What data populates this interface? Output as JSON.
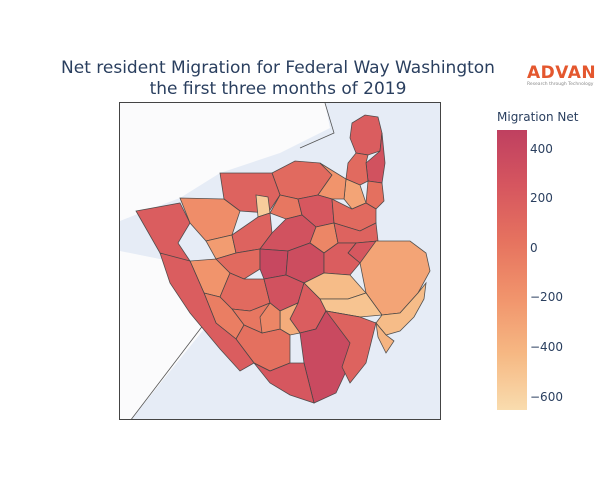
{
  "title": {
    "line1": "Net resident Migration for Federal Way Washington",
    "line2": "the first three months of 2019"
  },
  "logo": {
    "word": "ADVAN",
    "tagline": "Research through Technology"
  },
  "colorbar": {
    "title": "Migration Net",
    "min": -650,
    "max": 480,
    "ticks": [
      "400",
      "200",
      "0",
      "−200",
      "−400",
      "−600"
    ],
    "tick_values": [
      400,
      200,
      0,
      -200,
      -400,
      -600
    ],
    "colors": [
      "#f9dcae",
      "#f6b883",
      "#f1946c",
      "#e6735f",
      "#d6565f",
      "#bf4060"
    ]
  },
  "map": {
    "background_water": "#e6ecf6",
    "background_land": "#fbfbfc",
    "outline_color": "#444444",
    "regions": [
      {
        "id": "r01",
        "value": 200
      },
      {
        "id": "r02",
        "value": 300
      },
      {
        "id": "r03",
        "value": 100
      },
      {
        "id": "r04",
        "value": 50
      },
      {
        "id": "r05",
        "value": -300
      },
      {
        "id": "r06",
        "value": 100
      },
      {
        "id": "r07",
        "value": -200
      },
      {
        "id": "r08",
        "value": 150
      },
      {
        "id": "r09",
        "value": -550
      },
      {
        "id": "r10",
        "value": 0
      },
      {
        "id": "r11",
        "value": 250
      },
      {
        "id": "r12",
        "value": 100
      },
      {
        "id": "r13",
        "value": 200
      },
      {
        "id": "r14",
        "value": -150
      },
      {
        "id": "r15",
        "value": -250
      },
      {
        "id": "r16",
        "value": 150
      },
      {
        "id": "r17",
        "value": 300
      },
      {
        "id": "r18",
        "value": -100
      },
      {
        "id": "r19",
        "value": 150
      },
      {
        "id": "r20",
        "value": 250
      },
      {
        "id": "r21",
        "value": -300
      },
      {
        "id": "r22",
        "value": -200
      },
      {
        "id": "r23",
        "value": 100
      },
      {
        "id": "r24",
        "value": 400
      },
      {
        "id": "r25",
        "value": 350
      },
      {
        "id": "r26",
        "value": 200
      },
      {
        "id": "r27",
        "value": -450
      },
      {
        "id": "r28",
        "value": -500
      },
      {
        "id": "r29",
        "value": -450
      },
      {
        "id": "r30",
        "value": 100
      },
      {
        "id": "r31",
        "value": 300
      },
      {
        "id": "r32",
        "value": 200
      },
      {
        "id": "r33",
        "value": -350
      },
      {
        "id": "r34",
        "value": 0
      },
      {
        "id": "r35",
        "value": -50
      },
      {
        "id": "r36",
        "value": 380
      },
      {
        "id": "r37",
        "value": 50
      },
      {
        "id": "r38",
        "value": -400
      },
      {
        "id": "r39",
        "value": 250
      },
      {
        "id": "r40",
        "value": 150
      },
      {
        "id": "r41",
        "value": -100
      },
      {
        "id": "r42",
        "value": 200
      }
    ]
  }
}
